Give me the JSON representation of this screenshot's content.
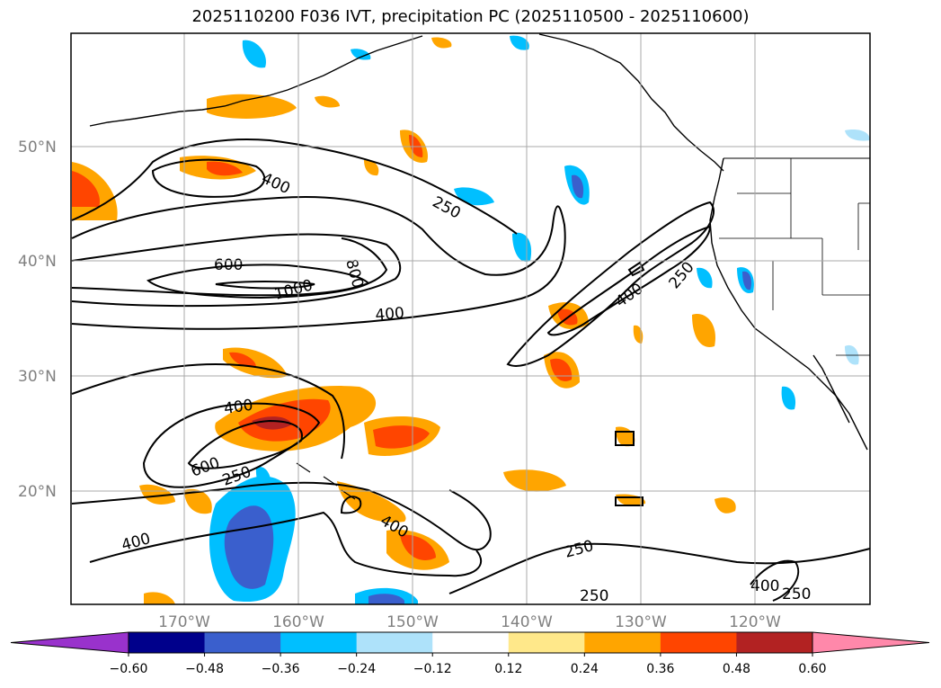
{
  "title": "2025110200 F036 IVT, precipitation PC (2025110500 - 2025110600)",
  "lat_labels": [
    "50°N",
    "40°N",
    "30°N",
    "20°N"
  ],
  "lon_labels": [
    "170°W",
    "160°W",
    "150°W",
    "140°W",
    "130°W",
    "120°W"
  ],
  "contour_labels": [
    "400",
    "250",
    "600",
    "800",
    "1000",
    "400",
    "400",
    "250",
    "400",
    "600",
    "250",
    "400",
    "400",
    "250",
    "250",
    "400",
    "250"
  ],
  "colorbar": {
    "ticks": [
      "−0.60",
      "−0.48",
      "−0.36",
      "−0.24",
      "−0.12",
      "0.12",
      "0.24",
      "0.36",
      "0.48",
      "0.60"
    ],
    "colors": [
      "#9932cc",
      "#00008b",
      "#3a5fcd",
      "#00bfff",
      "#aee2fa",
      "#ffffff",
      "#ffe88a",
      "#ffa500",
      "#ff4500",
      "#b22222",
      "#ff88aa"
    ]
  }
}
